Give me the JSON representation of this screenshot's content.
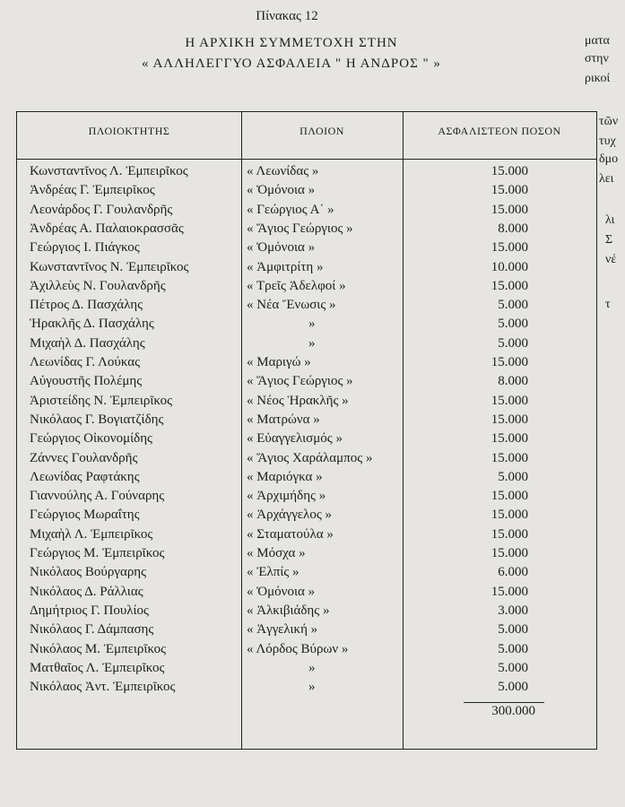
{
  "header": {
    "caption": "Πίνακας 12",
    "title_lines": [
      "Η ΑΡΧΙΚΗ ΣΥΜΜΕΤΟΧΗ ΣΤΗΝ",
      "« ΑΛΛΗΛΕΓΓΥΟ ΑΣΦΑΛΕΙΑ \" Η ΑΝΔΡΟΣ \" »"
    ]
  },
  "table": {
    "columns": [
      "ΠΛΟΙΟΚΤΗΤΗΣ",
      "ΠΛΟΙΟΝ",
      "ΑΣΦΑΛΙΣΤΕΟΝ ΠΟΣΟΝ"
    ],
    "rows": [
      [
        "Κωνσταντῖνος Λ. Ἐμπειρῖκος",
        "« Λεωνίδας »",
        "15.000"
      ],
      [
        "Ἀνδρέας Γ. Ἐμπειρῖκος",
        "« Ὁμόνοια »",
        "15.000"
      ],
      [
        "Λεονάρδος Γ. Γουλανδρῆς",
        "« Γεώργιος Α΄ »",
        "15.000"
      ],
      [
        "Ἀνδρέας Α. Παλαιοκρασσᾶς",
        "« Ἅγιος Γεώργιος »",
        "8.000"
      ],
      [
        "Γεώργιος Ι. Πιάγκος",
        "« Ὁμόνοια »",
        "15.000"
      ],
      [
        "Κωνσταντῖνος Ν. Ἐμπειρῖκος",
        "« Ἀμφιτρίτη »",
        "10.000"
      ],
      [
        "Ἀχιλλεὺς Ν. Γουλανδρῆς",
        "« Τρεῖς Ἀδελφοί »",
        "15.000"
      ],
      [
        "Πέτρος Δ. Πασχάλης",
        "« Νέα Ἕνωσις »",
        "5.000"
      ],
      [
        "Ἡρακλῆς Δ. Πασχάλης",
        "»",
        "5.000"
      ],
      [
        "Μιχαὴλ Δ. Πασχάλης",
        "»",
        "5.000"
      ],
      [
        "Λεωνίδας Γ. Λούκας",
        "« Μαριγώ »",
        "15.000"
      ],
      [
        "Αὐγουστῆς Πολέμης",
        "« Ἅγιος Γεώργιος »",
        "8.000"
      ],
      [
        "Ἀριστείδης Ν. Ἐμπειρῖκος",
        "« Νέος Ἡρακλῆς »",
        "15.000"
      ],
      [
        "Νικόλαος Γ. Βογιατζίδης",
        "« Ματρώνα »",
        "15.000"
      ],
      [
        "Γεώργιος Οἰκονομίδης",
        "« Εὐαγγελισμός »",
        "15.000"
      ],
      [
        "Ζάννες Γουλανδρῆς",
        "« Ἅγιος Χαράλαμπος »",
        "15.000"
      ],
      [
        "Λεωνίδας Ραφτάκης",
        "« Μαριόγκα »",
        "5.000"
      ],
      [
        "Γιαννούλης Α. Γούναρης",
        "« Ἀρχιμήδης »",
        "15.000"
      ],
      [
        "Γεώργιος Μωραΐτης",
        "« Ἀρχάγγελος »",
        "15.000"
      ],
      [
        "Μιχαὴλ Λ. Ἐμπειρῖκος",
        "« Σταματούλα »",
        "15.000"
      ],
      [
        "Γεώργιος Μ. Ἐμπειρῖκος",
        "« Μόσχα »",
        "15.000"
      ],
      [
        "Νικόλαος Βούργαρης",
        "« Ἐλπίς »",
        "6.000"
      ],
      [
        "Νικόλαος Δ. Ράλλιας",
        "« Ὁμόνοια »",
        "15.000"
      ],
      [
        "Δημήτριος Γ. Πουλίος",
        "« Ἀλκιβιάδης »",
        "3.000"
      ],
      [
        "Νικόλαος Γ. Δάμπασης",
        "« Ἀγγελική »",
        "5.000"
      ],
      [
        "Νικόλαος Μ. Ἐμπειρῖκος",
        "« Λόρδος Βύρων »",
        "5.000"
      ],
      [
        "Ματθαῖος Λ. Ἐμπειρῖκος",
        "»",
        "5.000"
      ],
      [
        "Νικόλαος Ἀντ. Ἐμπειρῖκος",
        "»",
        "5.000"
      ]
    ],
    "total": "300.000"
  },
  "facing_page": [
    "ματα",
    "στην",
    "ρικοί",
    "τῶν",
    "τυχ",
    "δμο",
    "λει",
    "λι",
    "Σ",
    "νέ",
    "τ"
  ]
}
